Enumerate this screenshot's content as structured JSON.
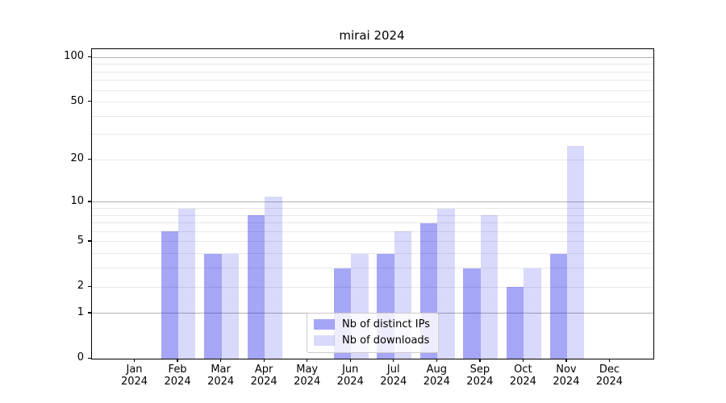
{
  "chart_data": {
    "type": "bar",
    "title": "mirai 2024",
    "year_label": "2024",
    "categories": [
      "Jan",
      "Feb",
      "Mar",
      "Apr",
      "May",
      "Jun",
      "Jul",
      "Aug",
      "Sep",
      "Oct",
      "Nov",
      "Dec"
    ],
    "series": [
      {
        "name": "Nb of distinct IPs",
        "color": "rgba(0,0,230,0.35)",
        "values": [
          0,
          6,
          4,
          8,
          0,
          3,
          4,
          7,
          3,
          2,
          4,
          0
        ]
      },
      {
        "name": "Nb of downloads",
        "color": "rgba(0,0,230,0.15)",
        "values": [
          0,
          9,
          4,
          11,
          0,
          4,
          6,
          9,
          8,
          3,
          25,
          0
        ]
      }
    ],
    "xlabel": "",
    "ylabel": "",
    "yscale": "log10(value+1)",
    "ylim": [
      0,
      113.6
    ],
    "yticks": [
      0,
      1,
      2,
      5,
      10,
      20,
      50,
      100
    ],
    "major_gridlines": [
      1,
      10,
      100
    ],
    "minor_gridlines": [
      2,
      3,
      4,
      5,
      6,
      7,
      8,
      9,
      20,
      30,
      40,
      50,
      60,
      70,
      80,
      90
    ],
    "grid": true,
    "legend_position": "lower center",
    "bar_width_fraction": 0.4
  },
  "colors": {
    "background": "#ffffff",
    "spine": "#000000",
    "major_grid": "#b2b2b2",
    "minor_grid": "#e8e8e8",
    "text": "#000000",
    "legend_border": "#cccccc",
    "legend_background": "rgba(255,255,255,0.8)",
    "series_distinct_ips": "rgba(0,0,230,0.35)",
    "series_downloads": "rgba(0,0,230,0.15)"
  }
}
